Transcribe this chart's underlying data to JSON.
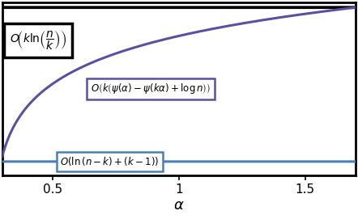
{
  "xlabel": "$\\alpha$",
  "xlim": [
    0.3,
    1.7
  ],
  "ylim": [
    0.0,
    1.0
  ],
  "xticks": [
    0.5,
    1.0,
    1.5
  ],
  "xtick_labels": [
    "0.5",
    "1",
    "1.5"
  ],
  "black_line_y": 0.97,
  "blue_line_y": 0.08,
  "black_color": "#000000",
  "blue_color": "#4a7fb5",
  "purple_color": "#5c4fa0",
  "label_black": "$O\\!\\left(k\\ln\\!\\left(\\dfrac{n}{k}\\right)\\right)$",
  "label_purple": "$O\\left(k\\left(\\psi(\\alpha)-\\psi(k\\alpha)+\\log n\\right)\\right)$",
  "label_blue": "$O\\left(\\ln\\left(n-k\\right)+\\left(k-1\\right)\\right)$",
  "black_box_color": "#000000",
  "purple_box_color": "#5c4fa0",
  "blue_box_color": "#4a7fb5",
  "figsize": [
    4.42,
    2.66
  ],
  "dpi": 100,
  "spine_linewidth": 2.0,
  "curve_linewidth": 2.2
}
